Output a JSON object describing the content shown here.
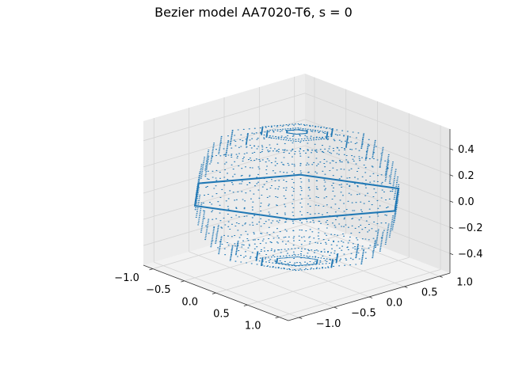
{
  "chart_data": {
    "type": "scatter",
    "title": "Bezier model AA7020-T6, s = 0",
    "projection": "3d",
    "xlim": [
      -1.15,
      1.15
    ],
    "ylim": [
      -1.15,
      1.15
    ],
    "zlim": [
      -0.55,
      0.55
    ],
    "x_ticks": [
      "−1.0",
      "−0.5",
      "0.0",
      "0.5",
      "1.0"
    ],
    "x_tick_values": [
      -1.0,
      -0.5,
      0.0,
      0.5,
      1.0
    ],
    "y_ticks": [
      "−1.0",
      "−0.5",
      "0.0",
      "0.5",
      "1.0"
    ],
    "y_tick_values": [
      -1.0,
      -0.5,
      0.0,
      0.5,
      1.0
    ],
    "z_ticks": [
      "−0.4",
      "−0.2",
      "0.0",
      "0.2",
      "0.4"
    ],
    "z_tick_values": [
      -0.4,
      -0.2,
      0.0,
      0.2,
      0.4
    ],
    "grid": true,
    "series_color": "#1f77b4",
    "surface": {
      "description_points": "yield surface point cloud, hexagonal-prism shaped",
      "hexagon_vertices_xy": [
        [
          1.0,
          0.5
        ],
        [
          0.5,
          1.0
        ],
        [
          -0.5,
          0.5
        ],
        [
          -1.0,
          -0.5
        ],
        [
          -0.5,
          -1.0
        ],
        [
          0.5,
          -0.5
        ]
      ],
      "z_max": 0.5,
      "angular_samples": 72,
      "z_levels": 17
    }
  }
}
